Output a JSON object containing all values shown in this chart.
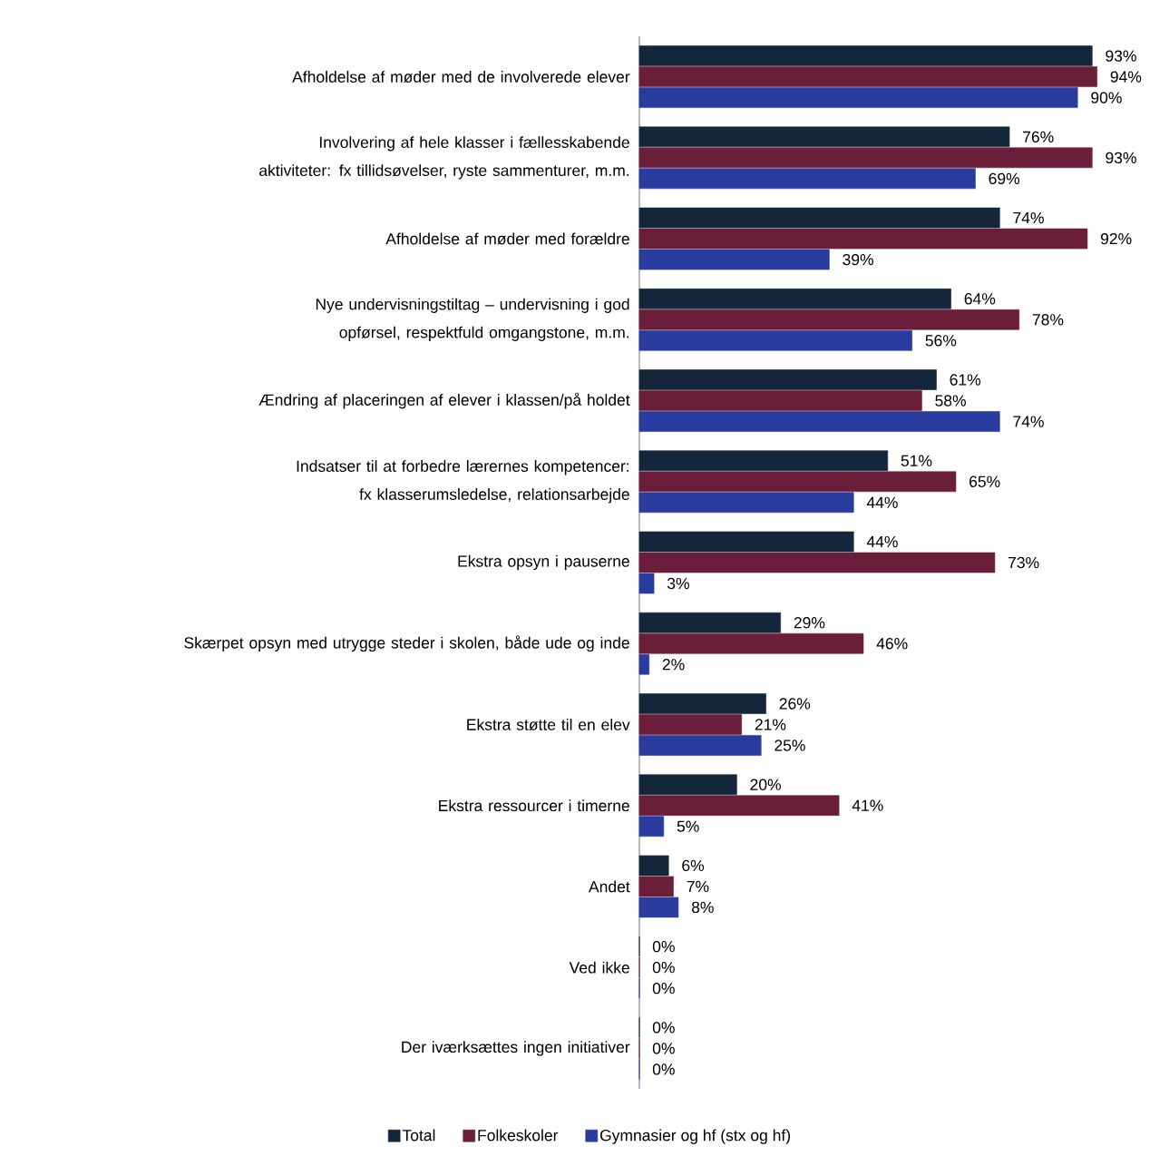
{
  "chart_data": {
    "type": "bar",
    "orientation": "horizontal",
    "legend": "bottom",
    "categories": [
      "Afholdelse af møder med de involverede elever",
      "Involvering af hele klasser i fællesskabende aktiviteter: fx tillidsøvelser, ryste sammenturer, m.m.",
      "Afholdelse af møder med forældre",
      "Nye undervisningstiltag – undervisning i god opførsel, respektfuld omgangstone, m.m.",
      "Ændring af placeringen af elever i klassen/på holdet",
      "Indsatser til at forbedre lærernes kompetencer: fx klasserumsledelse, relationsarbejde",
      "Ekstra opsyn i pauserne",
      "Skærpet opsyn med utrygge steder i skolen, både ude og inde",
      "Ekstra støtte til en elev",
      "Ekstra ressourcer i timerne",
      "Andet",
      "Ved ikke",
      "Der iværksættes ingen initiativer"
    ],
    "series": [
      {
        "name": "Total",
        "color": "#14273a",
        "values": [
          93,
          76,
          74,
          64,
          61,
          51,
          44,
          29,
          26,
          20,
          6,
          0,
          0
        ],
        "value_labels": [
          "93%",
          "76%",
          "74%",
          "64%",
          "61%",
          "51%",
          "44%",
          "29%",
          "26%",
          "20%",
          "6%",
          "0%",
          "0%"
        ]
      },
      {
        "name": "Folkeskoler",
        "color": "#6b1e3a",
        "values": [
          94,
          93,
          92,
          78,
          58,
          65,
          73,
          46,
          21,
          41,
          7,
          0,
          0
        ],
        "value_labels": [
          "94%",
          "93%",
          "92%",
          "78%",
          "58%",
          "65%",
          "73%",
          "46%",
          "21%",
          "41%",
          "7%",
          "0%",
          "0%"
        ]
      },
      {
        "name": "Gymnasier og hf (stx og hf)",
        "color": "#2a3b9e",
        "values": [
          90,
          69,
          39,
          56,
          74,
          44,
          3,
          2,
          25,
          5,
          8,
          0,
          0
        ],
        "value_labels": [
          "90%",
          "69%",
          "39%",
          "56%",
          "74%",
          "44%",
          "3%",
          "2%",
          "25%",
          "5%",
          "8%",
          "0%",
          "0%"
        ]
      }
    ]
  }
}
